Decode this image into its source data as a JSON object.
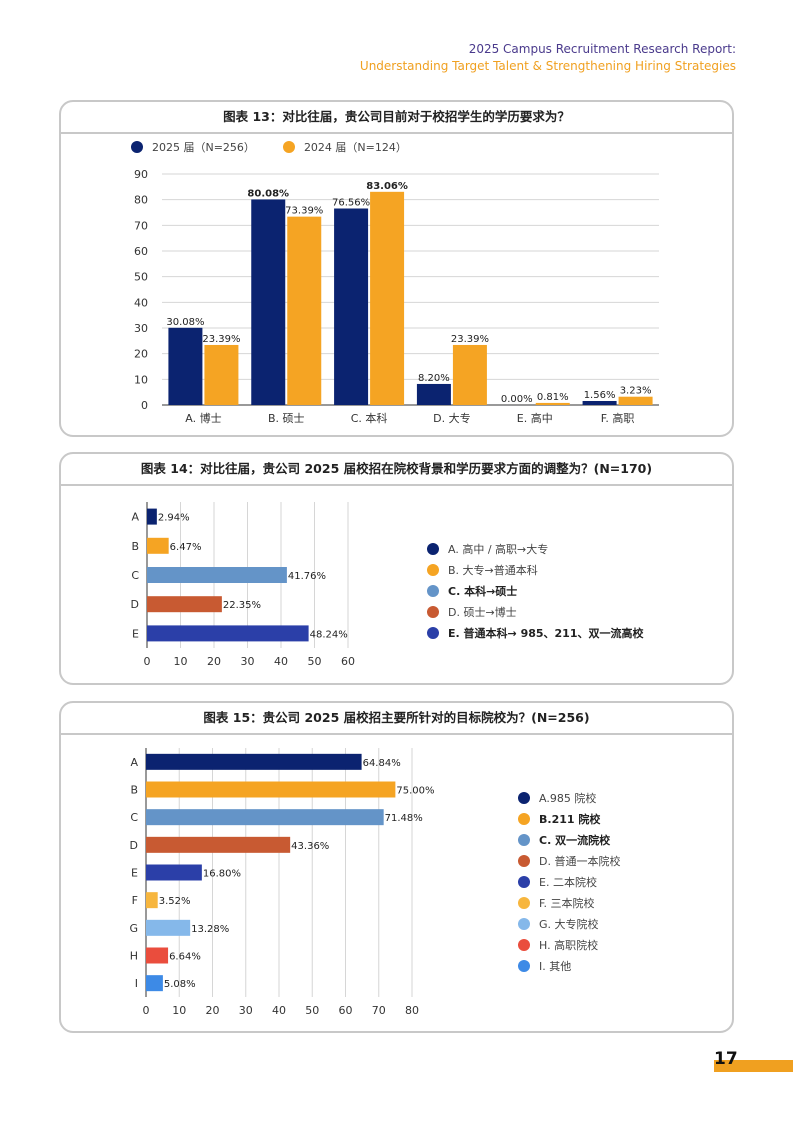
{
  "header": {
    "line1": "2025 Campus Recruitment Research Report:",
    "line2": "Understanding Target Talent & Strengthening Hiring Strategies"
  },
  "page_number": "17",
  "colors": {
    "navy": "#0b2370",
    "orange": "#f5a423",
    "steel": "#6494c8",
    "rust": "#c85a32",
    "royal": "#2b3fa8",
    "gold": "#f7b63e",
    "sky": "#85b8ea",
    "red": "#ea4d3d",
    "blue": "#3d8ae6"
  },
  "chart_data": [
    {
      "id": "chart13",
      "type": "bar",
      "title": "图表 13：对比往届，贵公司目前对于校招学生的学历要求为？",
      "categories": [
        "A. 博士",
        "B. 硕士",
        "C. 本科",
        "D. 大专",
        "E. 高中",
        "F. 高职"
      ],
      "series": [
        {
          "name": "2025 届（N=256）",
          "color": "#0b2370",
          "values": [
            30.08,
            80.08,
            76.56,
            8.2,
            0.0,
            1.56
          ],
          "labels": [
            "30.08%",
            "80.08%",
            "76.56%",
            "8.20%",
            "0.00%",
            "1.56%"
          ]
        },
        {
          "name": "2024 届（N=124）",
          "color": "#f5a423",
          "values": [
            23.39,
            73.39,
            83.06,
            23.39,
            0.81,
            3.23
          ],
          "labels": [
            "23.39%",
            "73.39%",
            "83.06%",
            "23.39%",
            "0.81%",
            "3.23%"
          ]
        }
      ],
      "bold_labels": [
        [
          1,
          0
        ],
        [
          2,
          1
        ]
      ],
      "ylim": [
        0,
        90
      ],
      "yticks": [
        "0",
        "10",
        "20",
        "30",
        "40",
        "50",
        "60",
        "70",
        "80",
        "90"
      ],
      "grid": true,
      "legend": "top-left"
    },
    {
      "id": "chart14",
      "type": "bar",
      "orientation": "horizontal",
      "title": "图表 14：对比往届，贵公司 2025 届校招在院校背景和学历要求方面的调整为？(N=170)",
      "categories": [
        "A",
        "B",
        "C",
        "D",
        "E"
      ],
      "values": [
        2.94,
        6.47,
        41.76,
        22.35,
        48.24
      ],
      "labels": [
        "2.94%",
        "6.47%",
        "41.76%",
        "22.35%",
        "48.24%"
      ],
      "colors": [
        "#0b2370",
        "#f5a423",
        "#6494c8",
        "#c85a32",
        "#2b3fa8"
      ],
      "xlim": [
        0,
        60
      ],
      "xticks": [
        "0",
        "10",
        "20",
        "30",
        "40",
        "50",
        "60"
      ],
      "grid": true,
      "legend": "right",
      "legend_items": [
        {
          "label": "A. 高中 / 高职→大专",
          "color": "#0b2370",
          "bold": false
        },
        {
          "label": "B. 大专→普通本科",
          "color": "#f5a423",
          "bold": false
        },
        {
          "label": "C. 本科→硕士",
          "color": "#6494c8",
          "bold": true
        },
        {
          "label": "D. 硕士→博士",
          "color": "#c85a32",
          "bold": false
        },
        {
          "label": "E. 普通本科→ 985、211、双一流高校",
          "color": "#2b3fa8",
          "bold": true
        }
      ]
    },
    {
      "id": "chart15",
      "type": "bar",
      "orientation": "horizontal",
      "title": "图表 15：贵公司 2025 届校招主要所针对的目标院校为？(N=256)",
      "categories": [
        "A",
        "B",
        "C",
        "D",
        "E",
        "F",
        "G",
        "H",
        "I"
      ],
      "values": [
        64.84,
        75.0,
        71.48,
        43.36,
        16.8,
        3.52,
        13.28,
        6.64,
        5.08
      ],
      "labels": [
        "64.84%",
        "75.00%",
        "71.48%",
        "43.36%",
        "16.80%",
        "3.52%",
        "13.28%",
        "6.64%",
        "5.08%"
      ],
      "colors": [
        "#0b2370",
        "#f5a423",
        "#6494c8",
        "#c85a32",
        "#2b3fa8",
        "#f7b63e",
        "#85b8ea",
        "#ea4d3d",
        "#3d8ae6"
      ],
      "xlim": [
        0,
        80
      ],
      "xticks": [
        "0",
        "10",
        "20",
        "30",
        "40",
        "50",
        "60",
        "70",
        "80"
      ],
      "grid": true,
      "legend": "right",
      "legend_items": [
        {
          "label": "A.985 院校",
          "color": "#0b2370",
          "bold": false
        },
        {
          "label": "B.211 院校",
          "color": "#f5a423",
          "bold": true
        },
        {
          "label": "C. 双一流院校",
          "color": "#6494c8",
          "bold": true
        },
        {
          "label": "D. 普通一本院校",
          "color": "#c85a32",
          "bold": false
        },
        {
          "label": "E. 二本院校",
          "color": "#2b3fa8",
          "bold": false
        },
        {
          "label": "F. 三本院校",
          "color": "#f7b63e",
          "bold": false
        },
        {
          "label": "G. 大专院校",
          "color": "#85b8ea",
          "bold": false
        },
        {
          "label": "H. 高职院校",
          "color": "#ea4d3d",
          "bold": false
        },
        {
          "label": "I. 其他",
          "color": "#3d8ae6",
          "bold": false
        }
      ]
    }
  ]
}
